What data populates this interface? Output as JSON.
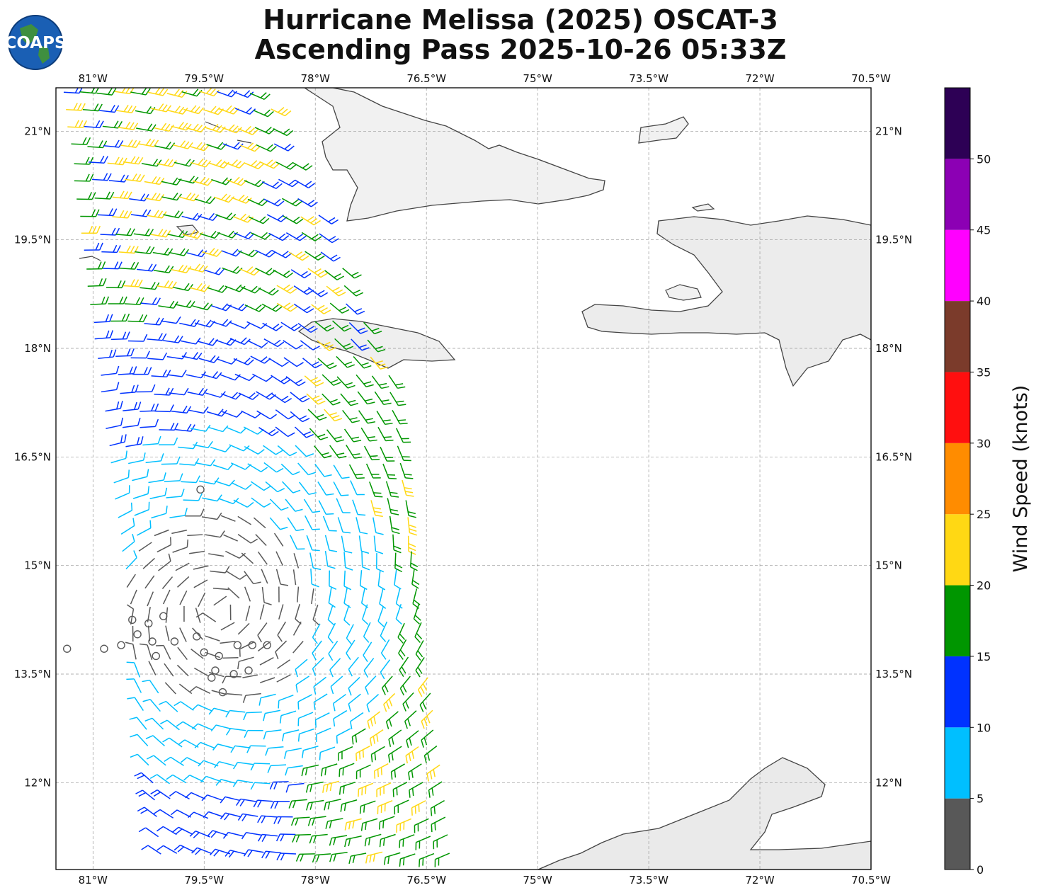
{
  "header": {
    "title_line1": "Hurricane Melissa (2025) OSCAT-3",
    "title_line2": "Ascending Pass 2025-10-26 05:33Z",
    "logo_text": "COAPS"
  },
  "map": {
    "lon_range": [
      -81.5,
      -70.5
    ],
    "lat_range": [
      10.8,
      21.6
    ],
    "lon_ticks": [
      -81.0,
      -79.5,
      -78.0,
      -76.5,
      -75.0,
      -73.5,
      -72.0,
      -70.5
    ],
    "lon_labels": [
      "81°W",
      "79.5°W",
      "78°W",
      "76.5°W",
      "75°W",
      "73.5°W",
      "72°W",
      "70.5°W"
    ],
    "lat_ticks": [
      21.0,
      19.5,
      18.0,
      16.5,
      15.0,
      13.5,
      12.0
    ],
    "lat_labels": [
      "21°N",
      "19.5°N",
      "18°N",
      "16.5°N",
      "15°N",
      "13.5°N",
      "12°N"
    ],
    "gridlines": true,
    "land_color": "#f2f2f2",
    "coastline_color": "#444444",
    "calm_markers_at": [
      [
        -80.62,
        13.9
      ],
      [
        -80.47,
        14.25
      ],
      [
        -80.25,
        14.2
      ],
      [
        -80.05,
        14.3
      ],
      [
        -80.4,
        14.05
      ],
      [
        -80.2,
        13.95
      ],
      [
        -80.15,
        13.75
      ],
      [
        -79.9,
        13.95
      ],
      [
        -79.6,
        14.02
      ],
      [
        -79.5,
        13.8
      ],
      [
        -79.3,
        13.75
      ],
      [
        -79.35,
        13.55
      ],
      [
        -79.05,
        13.9
      ],
      [
        -78.85,
        13.9
      ],
      [
        -78.65,
        13.9
      ],
      [
        -79.1,
        13.5
      ],
      [
        -79.25,
        13.25
      ],
      [
        -79.4,
        13.45
      ],
      [
        -78.9,
        13.55
      ],
      [
        -80.85,
        13.85
      ],
      [
        -81.35,
        13.85
      ],
      [
        -79.55,
        16.05
      ]
    ],
    "hurricane_center": [
      -79.3,
      14.4
    ]
  },
  "colorbar": {
    "label": "Wind Speed (knots)",
    "bounds": [
      0,
      5,
      10,
      15,
      20,
      25,
      30,
      35,
      40,
      45,
      50,
      55
    ],
    "tick_labels": [
      "0",
      "5",
      "10",
      "15",
      "20",
      "25",
      "30",
      "35",
      "40",
      "45",
      "50"
    ],
    "colors": [
      "#585858",
      "#00bfff",
      "#0032ff",
      "#009600",
      "#ffd814",
      "#ff8c00",
      "#ff0f0f",
      "#7b3b2b",
      "#ff00ff",
      "#8c00b4",
      "#2d0055"
    ]
  }
}
